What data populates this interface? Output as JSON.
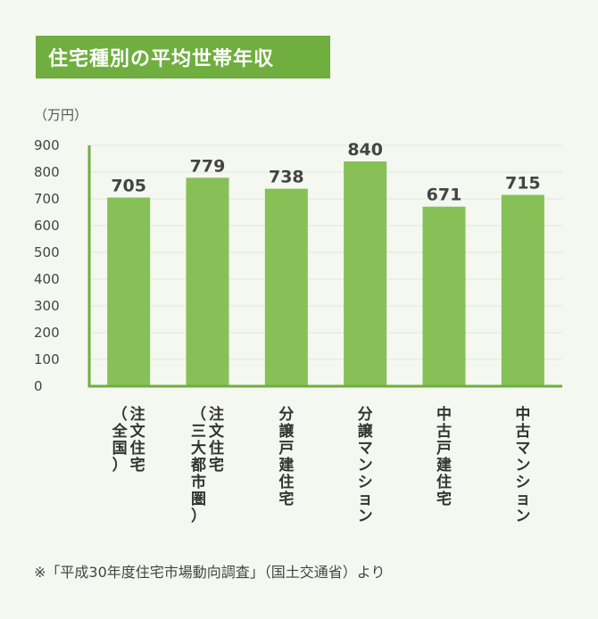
{
  "title": "住宅種別の平均世帯年収",
  "unit_label": "（万円）",
  "note": "※「平成30年度住宅市場動向調査」（国土交通省）より",
  "colors": {
    "bar": "#86c056",
    "axis": "#6fae3f",
    "grid": "#dfe8d6",
    "title_bg": "#6fae3f"
  },
  "chart_data": {
    "type": "bar",
    "title": "住宅種別の平均世帯年収",
    "ylabel": "（万円）",
    "ylim": [
      0,
      900
    ],
    "yticks": [
      0,
      100,
      200,
      300,
      400,
      500,
      600,
      700,
      800,
      900
    ],
    "grid": true,
    "categories": [
      [
        "注文住宅",
        "（全国）"
      ],
      [
        "注文住宅",
        "（三大都市圏）"
      ],
      [
        "分譲戸建住宅"
      ],
      [
        "分譲マンション"
      ],
      [
        "中古戸建住宅"
      ],
      [
        "中古マンション"
      ]
    ],
    "values": [
      705,
      779,
      738,
      840,
      671,
      715
    ]
  }
}
